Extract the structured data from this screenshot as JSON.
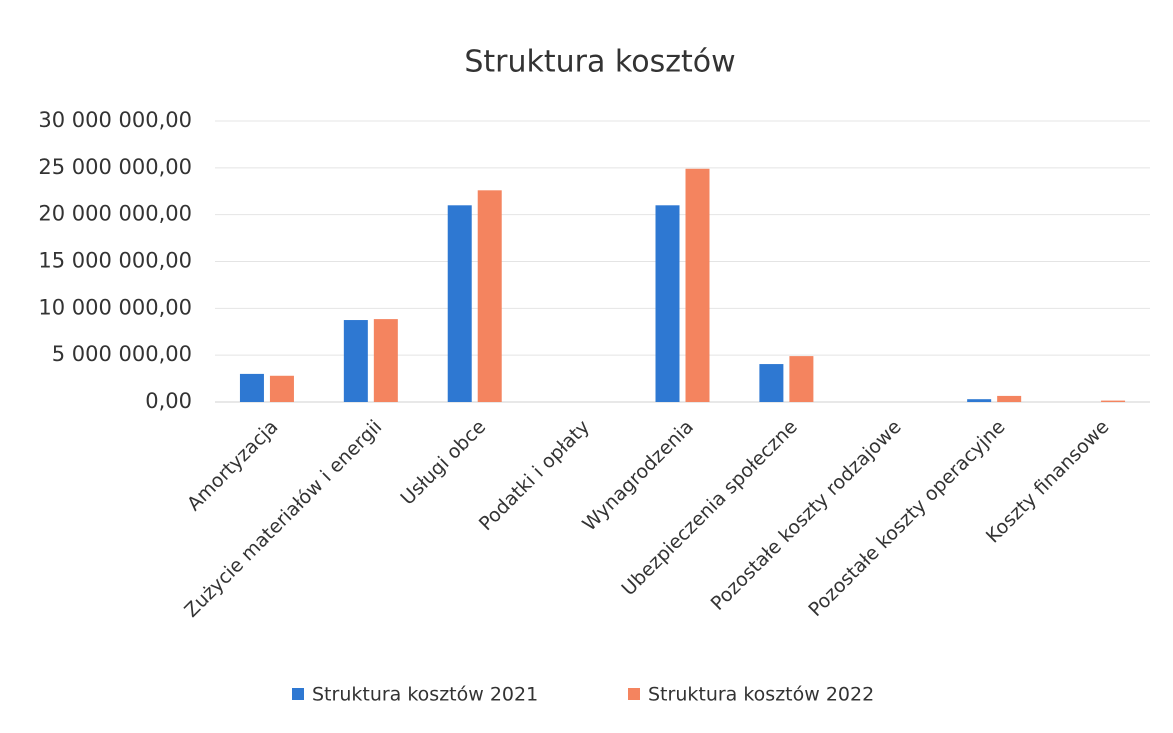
{
  "chart_data": {
    "type": "bar",
    "title": "Struktura kosztów",
    "categories": [
      "Amortyzacja",
      "Zużycie materiałów i energii",
      "Usługi obce",
      "Podatki i opłaty",
      "Wynagrodzenia",
      "Ubezpieczenia społeczne",
      "Pozostałe koszty rodzajowe",
      "Pozostałe koszty operacyjne",
      "Koszty finansowe"
    ],
    "series": [
      {
        "name": "Struktura kosztów 2021",
        "color": "#2e78d2",
        "values": [
          3000000,
          8750000,
          21000000,
          0,
          21000000,
          4050000,
          0,
          300000,
          0
        ]
      },
      {
        "name": "Struktura kosztów 2022",
        "color": "#f4845f",
        "values": [
          2800000,
          8850000,
          22600000,
          0,
          24900000,
          4900000,
          0,
          650000,
          150000
        ]
      }
    ],
    "ylim": [
      0,
      30000000
    ],
    "yticks": [
      {
        "value": 0,
        "label": "0,00"
      },
      {
        "value": 5000000,
        "label": "5 000 000,00"
      },
      {
        "value": 10000000,
        "label": "10 000 000,00"
      },
      {
        "value": 15000000,
        "label": "15 000 000,00"
      },
      {
        "value": 20000000,
        "label": "20 000 000,00"
      },
      {
        "value": 25000000,
        "label": "25 000 000,00"
      },
      {
        "value": 30000000,
        "label": "30 000 000,00"
      }
    ],
    "grid": true,
    "legend": "bottom"
  }
}
